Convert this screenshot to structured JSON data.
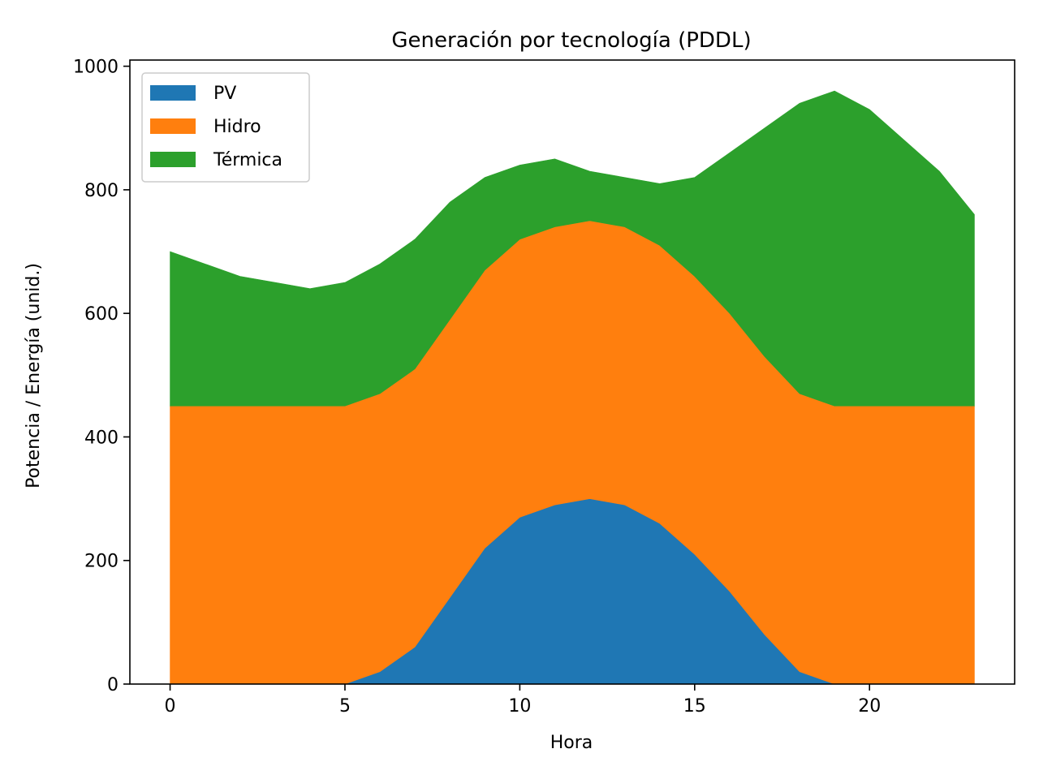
{
  "chart_data": {
    "type": "area",
    "stacked": true,
    "title": "Generación por tecnología (PDDL)",
    "xlabel": "Hora",
    "ylabel": "Potencia / Energía (unid.)",
    "x": [
      0,
      1,
      2,
      3,
      4,
      5,
      6,
      7,
      8,
      9,
      10,
      11,
      12,
      13,
      14,
      15,
      16,
      17,
      18,
      19,
      20,
      21,
      22,
      23
    ],
    "xlim": [
      -1.15,
      24.15
    ],
    "ylim": [
      0,
      1010
    ],
    "xticks": [
      0,
      5,
      10,
      15,
      20
    ],
    "yticks": [
      0,
      200,
      400,
      600,
      800,
      1000
    ],
    "grid": false,
    "legend": "top-left",
    "series": [
      {
        "name": "PV",
        "color": "#1f77b4",
        "values": [
          0,
          0,
          0,
          0,
          0,
          0,
          20,
          60,
          140,
          220,
          270,
          290,
          300,
          290,
          260,
          210,
          150,
          80,
          20,
          0,
          0,
          0,
          0,
          0
        ]
      },
      {
        "name": "Hidro",
        "color": "#ff7f0e",
        "values": [
          450,
          450,
          450,
          450,
          450,
          450,
          450,
          450,
          450,
          450,
          450,
          450,
          450,
          450,
          450,
          450,
          450,
          450,
          450,
          450,
          450,
          450,
          450,
          450
        ]
      },
      {
        "name": "Térmica",
        "color": "#2ca02c",
        "values": [
          250,
          230,
          210,
          200,
          190,
          200,
          210,
          210,
          190,
          150,
          120,
          110,
          80,
          80,
          100,
          160,
          260,
          370,
          470,
          510,
          480,
          430,
          380,
          310
        ]
      }
    ]
  }
}
